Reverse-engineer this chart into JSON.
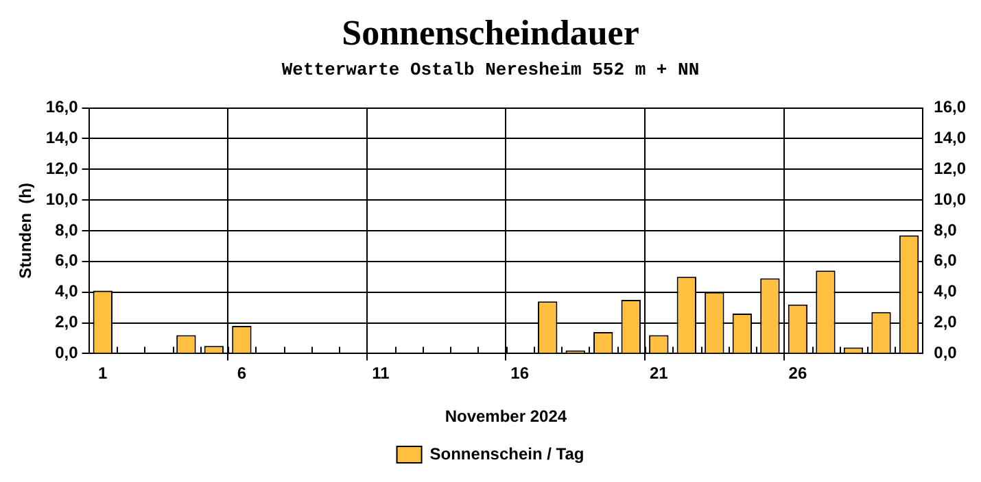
{
  "chart_data": {
    "type": "bar",
    "title": "Sonnenscheindauer",
    "subtitle": "Wetterwarte Ostalb Neresheim 552 m + NN",
    "xlabel": "November 2024",
    "ylabel": "Stunden  (h)",
    "categories": [
      "1",
      null,
      null,
      null,
      null,
      "6",
      null,
      null,
      null,
      null,
      "11",
      null,
      null,
      null,
      null,
      "16",
      null,
      null,
      null,
      null,
      "21",
      null,
      null,
      null,
      null,
      "26",
      null,
      null,
      null,
      null
    ],
    "series": [
      {
        "name": "Sonnenschein / Tag",
        "color": "#ffc040",
        "values": [
          4.1,
          0,
          0,
          1.2,
          0.5,
          1.8,
          0,
          0,
          0,
          0,
          0,
          0,
          0,
          0,
          0,
          0,
          3.4,
          0.2,
          1.4,
          3.5,
          1.2,
          5.0,
          4.0,
          2.6,
          4.9,
          3.2,
          5.4,
          0.4,
          2.7,
          7.7
        ]
      }
    ],
    "ylim": [
      0,
      16
    ],
    "yticks": [
      {
        "value": 0,
        "label": "0,0"
      },
      {
        "value": 2,
        "label": "2,0"
      },
      {
        "value": 4,
        "label": "4,0"
      },
      {
        "value": 6,
        "label": "6,0"
      },
      {
        "value": 8,
        "label": "8,0"
      },
      {
        "value": 10,
        "label": "10,0"
      },
      {
        "value": 12,
        "label": "12,0"
      },
      {
        "value": 14,
        "label": "14,0"
      },
      {
        "value": 16,
        "label": "16,0"
      }
    ],
    "y2lim": [
      0,
      16
    ],
    "y2ticks": [
      {
        "value": 0,
        "label": "0,0"
      },
      {
        "value": 2,
        "label": "2,0"
      },
      {
        "value": 4,
        "label": "4,0"
      },
      {
        "value": 6,
        "label": "6,0"
      },
      {
        "value": 8,
        "label": "8,0"
      },
      {
        "value": 10,
        "label": "10,0"
      },
      {
        "value": 12,
        "label": "12,0"
      },
      {
        "value": 14,
        "label": "14,0"
      },
      {
        "value": 16,
        "label": "16,0"
      }
    ],
    "grid": true,
    "legend": "bottom"
  }
}
